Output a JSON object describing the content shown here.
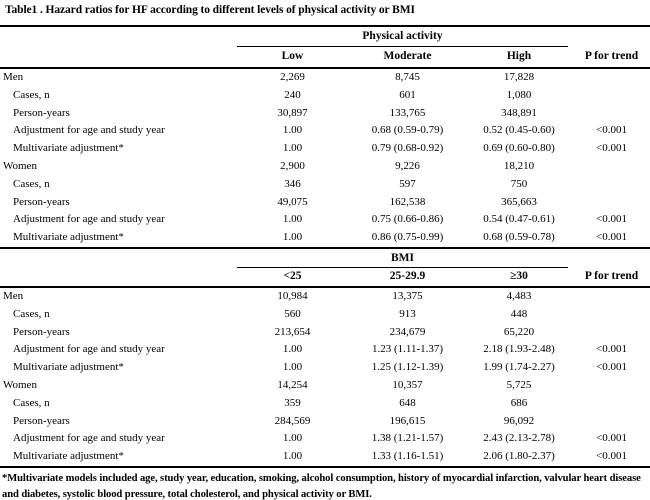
{
  "title": "Table1 . Hazard ratios for HF according to different levels of physical activity or BMI",
  "sections": [
    {
      "group_header": "Physical activity",
      "columns": [
        "Low",
        "Moderate",
        "High"
      ],
      "p_label": "P for trend",
      "rows": [
        {
          "label": "Men",
          "indent": false,
          "values": [
            "2,269",
            "8,745",
            "17,828",
            ""
          ]
        },
        {
          "label": "Cases, n",
          "indent": true,
          "values": [
            "240",
            "601",
            "1,080",
            ""
          ]
        },
        {
          "label": "Person-years",
          "indent": true,
          "values": [
            "30,897",
            "133,765",
            "348,891",
            ""
          ]
        },
        {
          "label": "Adjustment for age and study year",
          "indent": true,
          "values": [
            "1.00",
            "0.68 (0.59-0.79)",
            "0.52 (0.45-0.60)",
            "<0.001"
          ]
        },
        {
          "label": "Multivariate adjustment*",
          "indent": true,
          "values": [
            "1.00",
            "0.79 (0.68-0.92)",
            "0.69 (0.60-0.80)",
            "<0.001"
          ]
        },
        {
          "label": "Women",
          "indent": false,
          "values": [
            "2,900",
            "9,226",
            "18,210",
            ""
          ]
        },
        {
          "label": "Cases, n",
          "indent": true,
          "values": [
            "346",
            "597",
            "750",
            ""
          ]
        },
        {
          "label": "Person-years",
          "indent": true,
          "values": [
            "49,075",
            "162,538",
            "365,663",
            ""
          ]
        },
        {
          "label": "Adjustment for age and study year",
          "indent": true,
          "values": [
            "1.00",
            "0.75 (0.66-0.86)",
            "0.54 (0.47-0.61)",
            "<0.001"
          ]
        },
        {
          "label": "Multivariate adjustment*",
          "indent": true,
          "values": [
            "1.00",
            "0.86 (0.75-0.99)",
            "0.68 (0.59-0.78)",
            "<0.001"
          ]
        }
      ]
    },
    {
      "group_header": "BMI",
      "columns": [
        "<25",
        "25-29.9",
        "≥30"
      ],
      "p_label": "P for trend",
      "rows": [
        {
          "label": "Men",
          "indent": false,
          "values": [
            "10,984",
            "13,375",
            "4,483",
            ""
          ]
        },
        {
          "label": "Cases, n",
          "indent": true,
          "values": [
            "560",
            "913",
            "448",
            ""
          ]
        },
        {
          "label": "Person-years",
          "indent": true,
          "values": [
            "213,654",
            "234,679",
            "65,220",
            ""
          ]
        },
        {
          "label": "Adjustment for age and study year",
          "indent": true,
          "values": [
            "1.00",
            "1.23 (1.11-1.37)",
            "2.18 (1.93-2.48)",
            "<0.001"
          ]
        },
        {
          "label": "Multivariate adjustment*",
          "indent": true,
          "values": [
            "1.00",
            "1.25 (1.12-1.39)",
            "1.99 (1.74-2.27)",
            "<0.001"
          ]
        },
        {
          "label": "Women",
          "indent": false,
          "values": [
            "14,254",
            "10,357",
            "5,725",
            ""
          ]
        },
        {
          "label": "Cases, n",
          "indent": true,
          "values": [
            "359",
            "648",
            "686",
            ""
          ]
        },
        {
          "label": "Person-years",
          "indent": true,
          "values": [
            "284,569",
            "196,615",
            "96,092",
            ""
          ]
        },
        {
          "label": "Adjustment for age and study year",
          "indent": true,
          "values": [
            "1.00",
            "1.38 (1.21-1.57)",
            "2.43 (2.13-2.78)",
            "<0.001"
          ]
        },
        {
          "label": "Multivariate adjustment*",
          "indent": true,
          "values": [
            "1.00",
            "1.33 (1.16-1.51)",
            "2.06 (1.80-2.37)",
            "<0.001"
          ]
        }
      ]
    }
  ],
  "footnote": "*Multivariate models included age, study year, education, smoking, alcohol consumption, history of myocardial infarction, valvular heart disease and diabetes, systolic blood pressure, total cholesterol, and physical activity or BMI."
}
